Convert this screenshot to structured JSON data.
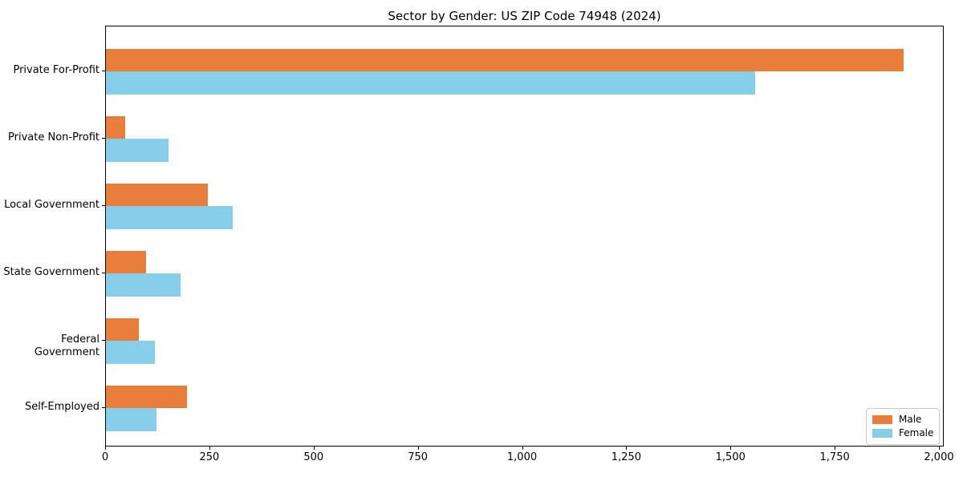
{
  "title": "Sector by Gender: US ZIP Code 74948 (2024)",
  "chart_data": {
    "type": "bar",
    "orientation": "horizontal",
    "title": "Sector by Gender: US ZIP Code 74948 (2024)",
    "categories": [
      "Private For-Profit",
      "Private Non-Profit",
      "Local Government",
      "State Government",
      "Federal Government",
      "Self-Employed"
    ],
    "series": [
      {
        "name": "Male",
        "color": "#e97d3c",
        "values": [
          1913,
          46,
          245,
          96,
          79,
          194
        ]
      },
      {
        "name": "Female",
        "color": "#87ceeb",
        "values": [
          1557,
          150,
          304,
          179,
          117,
          121
        ]
      }
    ],
    "xlabel": "",
    "ylabel": "",
    "xlim": [
      0,
      2000
    ],
    "xticks": [
      0,
      250,
      500,
      750,
      1000,
      1250,
      1500,
      1750,
      2000
    ],
    "xtick_labels": [
      "0",
      "250",
      "500",
      "750",
      "1,000",
      "1,250",
      "1,500",
      "1,750",
      "2,000"
    ],
    "grid": false,
    "frame": true,
    "legend": {
      "position": "lower right",
      "entries": [
        {
          "label": "Male",
          "color": "#e97d3c"
        },
        {
          "label": "Female",
          "color": "#87ceeb"
        }
      ]
    }
  }
}
